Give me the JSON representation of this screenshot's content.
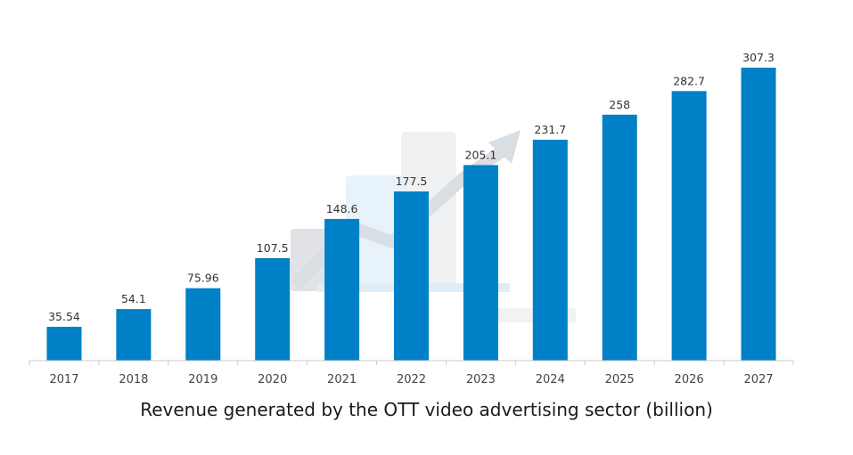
{
  "chart_data": {
    "type": "bar",
    "title": "Revenue generated by the OTT video advertising sector (billion)",
    "xlabel": "",
    "ylabel": "",
    "categories": [
      "2017",
      "2018",
      "2019",
      "2020",
      "2021",
      "2022",
      "2023",
      "2024",
      "2025",
      "2026",
      "2027"
    ],
    "values": [
      35.54,
      54.1,
      75.96,
      107.5,
      148.6,
      177.5,
      205.1,
      231.7,
      258,
      282.7,
      307.3
    ],
    "value_labels": [
      "35.54",
      "54.1",
      "75.96",
      "107.5",
      "148.6",
      "177.5",
      "205.1",
      "231.7",
      "258",
      "282.7",
      "307.3"
    ],
    "ylim": [
      0,
      307.3
    ],
    "grid": false,
    "legend": "none",
    "bar_color": "#0080c6",
    "axis_color": "#c8c8c8"
  }
}
